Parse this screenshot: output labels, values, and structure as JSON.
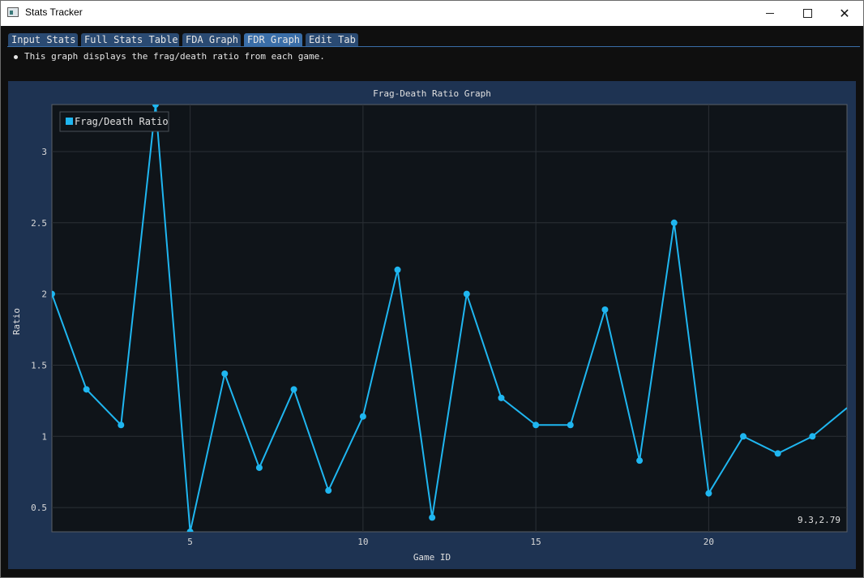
{
  "window": {
    "title": "Stats Tracker",
    "minimize_label": "minimize",
    "maximize_label": "maximize",
    "close_label": "close"
  },
  "tabs": [
    {
      "label": "Input Stats",
      "active": false
    },
    {
      "label": "Full Stats Table",
      "active": false
    },
    {
      "label": "FDA Graph",
      "active": false
    },
    {
      "label": "FDR Graph",
      "active": true
    },
    {
      "label": "Edit Tab",
      "active": false
    }
  ],
  "info_text": "This graph displays the frag/death ratio from each game.",
  "plot": {
    "hover_readout": "9.3,2.79"
  },
  "colors": {
    "accent": "#1fb6f0",
    "plot_bg": "#0f1419",
    "frame_bg": "#1e3352",
    "tab_bg": "#2a4a72",
    "tab_active_bg": "#3a6ea8"
  },
  "chart_data": {
    "type": "line",
    "title": "Frag-Death Ratio Graph",
    "xlabel": "Game ID",
    "ylabel": "Ratio",
    "series": [
      {
        "name": "Frag/Death Ratio",
        "x": [
          1,
          2,
          3,
          4,
          5,
          6,
          7,
          8,
          9,
          10,
          11,
          12,
          13,
          14,
          15,
          16,
          17,
          18,
          19,
          20,
          21,
          22,
          23,
          24
        ],
        "values": [
          2.0,
          1.33,
          1.08,
          3.33,
          0.33,
          1.44,
          0.78,
          1.33,
          0.62,
          1.14,
          2.17,
          0.43,
          2.0,
          1.27,
          1.08,
          1.08,
          1.89,
          0.83,
          2.5,
          0.6,
          1.0,
          0.88,
          1.0,
          1.2
        ]
      }
    ],
    "xlim": [
      1,
      24
    ],
    "ylim": [
      0.33,
      3.33
    ],
    "xticks": [
      5,
      10,
      15,
      20
    ],
    "yticks": [
      0.5,
      1,
      1.5,
      2,
      2.5,
      3
    ],
    "ytick_labels": [
      "0.5",
      "1",
      "1.5",
      "2",
      "2.5",
      "3"
    ],
    "xtick_labels": [
      "5",
      "10",
      "15",
      "20"
    ],
    "grid": true,
    "legend": "top-left"
  }
}
